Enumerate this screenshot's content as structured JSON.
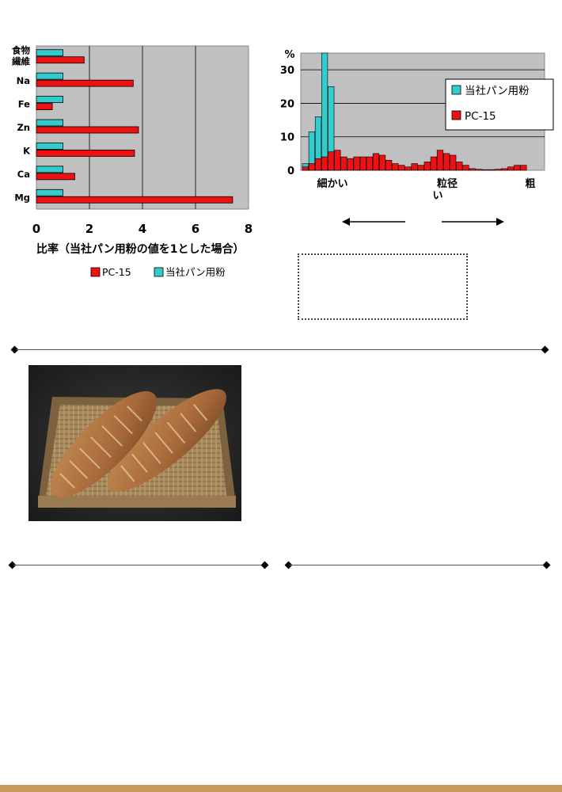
{
  "chart_data": [
    {
      "type": "bar",
      "orientation": "horizontal",
      "categories": [
        "食物\n繊維",
        "Na",
        "Fe",
        "Zn",
        "K",
        "Ca",
        "Mg"
      ],
      "series": [
        {
          "name": "当社パン用粉",
          "color": "#33cccc",
          "values": [
            1,
            1,
            1,
            1,
            1,
            1,
            1
          ]
        },
        {
          "name": "PC-15",
          "color": "#ee1111",
          "values": [
            1.8,
            3.65,
            0.6,
            3.85,
            3.7,
            1.45,
            7.4
          ]
        }
      ],
      "xlabel": "比率（当社パン用粉の値を1とした場合）",
      "xlim": [
        0,
        8
      ],
      "xticks": [
        0,
        2,
        4,
        6,
        8
      ],
      "grid": true,
      "legend": "bottom"
    },
    {
      "type": "bar",
      "categories_count": 37,
      "series": [
        {
          "name": "当社パン用粉",
          "color": "#33cccc",
          "values": [
            2,
            11.5,
            16,
            35,
            25,
            5.5,
            0,
            0,
            0,
            0,
            0,
            0,
            0,
            0,
            0,
            0,
            0,
            0,
            0,
            0,
            0,
            0,
            0,
            0,
            0,
            0,
            0,
            0,
            0,
            0,
            0,
            0,
            0,
            0,
            0,
            0,
            0
          ]
        },
        {
          "name": "PC-15",
          "color": "#ee1111",
          "values": [
            1,
            2,
            3.5,
            4,
            5.5,
            6,
            4,
            3.5,
            4,
            4,
            4,
            5,
            4.5,
            3,
            2,
            1.5,
            1,
            2,
            1.5,
            2.5,
            4,
            6,
            5,
            4.5,
            2.5,
            1.5,
            0.5,
            0.3,
            0.2,
            0.2,
            0.3,
            0.5,
            1,
            1.5,
            1.5,
            0,
            0
          ]
        }
      ],
      "ylabel": "%",
      "ylim": [
        0,
        35
      ],
      "yticks": [
        0,
        10,
        20,
        30
      ],
      "xlabels": [
        "細かい",
        "粒径\nい",
        "粗"
      ],
      "grid": true,
      "legend": "top-right"
    }
  ],
  "colors": {
    "teal": "#33cccc",
    "red": "#ee1111",
    "plot_bg": "#c0c0c0",
    "footer": "#c89a5a"
  },
  "photo": {
    "description_icon": "bread-loaves-in-basket-icon"
  }
}
